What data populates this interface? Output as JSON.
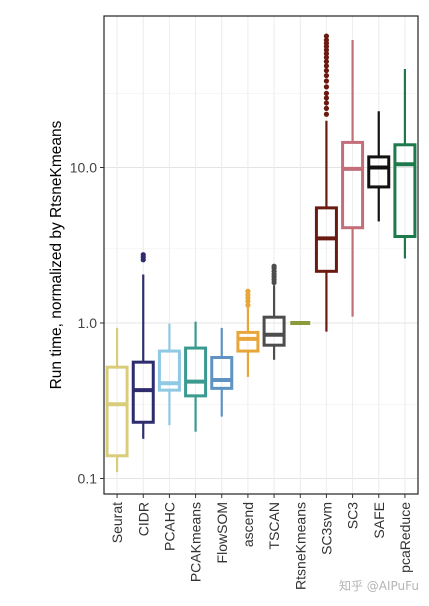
{
  "chart_data": {
    "type": "boxplot",
    "ylabel": "Run time, normalized by RtsneKmeans",
    "xlabel": "",
    "y_scale": "log10",
    "ylim": [
      0.08,
      100
    ],
    "y_ticks": [
      0.1,
      1.0,
      10.0
    ],
    "y_tick_labels": [
      "0.1",
      "1.0",
      "10.0"
    ],
    "grid": true,
    "legend": "none",
    "categories": [
      "Seurat",
      "CIDR",
      "PCAHC",
      "PCAKmeans",
      "FlowSOM",
      "ascend",
      "TSCAN",
      "RtsneKmeans",
      "SC3svm",
      "SC3",
      "SAFE",
      "pcaReduce"
    ],
    "colors": [
      "#D9CC7A",
      "#2E2C6E",
      "#8FC9E3",
      "#3A9A8F",
      "#5E93C2",
      "#E8A63A",
      "#4D4D4D",
      "#8C9A3C",
      "#6B1A12",
      "#C46E7A",
      "#111111",
      "#1E7A4A"
    ],
    "boxes": [
      {
        "name": "Seurat",
        "whisker_low": 0.11,
        "q1": 0.14,
        "median": 0.3,
        "q3": 0.52,
        "whisker_high": 0.93,
        "outliers": []
      },
      {
        "name": "CIDR",
        "whisker_low": 0.18,
        "q1": 0.23,
        "median": 0.37,
        "q3": 0.56,
        "whisker_high": 2.05,
        "outliers": [
          2.55,
          2.65,
          2.75
        ]
      },
      {
        "name": "PCAHC",
        "whisker_low": 0.22,
        "q1": 0.37,
        "median": 0.41,
        "q3": 0.66,
        "whisker_high": 0.99,
        "outliers": []
      },
      {
        "name": "PCAKmeans",
        "whisker_low": 0.2,
        "q1": 0.34,
        "median": 0.42,
        "q3": 0.69,
        "whisker_high": 1.02,
        "outliers": []
      },
      {
        "name": "FlowSOM",
        "whisker_low": 0.25,
        "q1": 0.38,
        "median": 0.43,
        "q3": 0.6,
        "whisker_high": 0.93,
        "outliers": []
      },
      {
        "name": "ascend",
        "whisker_low": 0.45,
        "q1": 0.66,
        "median": 0.79,
        "q3": 0.87,
        "whisker_high": 1.25,
        "outliers": [
          1.3,
          1.38,
          1.45,
          1.52,
          1.6
        ]
      },
      {
        "name": "TSCAN",
        "whisker_low": 0.58,
        "q1": 0.72,
        "median": 0.84,
        "q3": 1.09,
        "whisker_high": 1.75,
        "outliers": [
          1.82,
          1.9,
          1.98,
          2.06,
          2.15,
          2.25,
          2.32
        ]
      },
      {
        "name": "RtsneKmeans",
        "whisker_low": 1.0,
        "q1": 1.0,
        "median": 1.0,
        "q3": 1.0,
        "whisker_high": 1.0,
        "outliers": []
      },
      {
        "name": "SC3svm",
        "whisker_low": 0.88,
        "q1": 2.15,
        "median": 3.5,
        "q3": 5.5,
        "whisker_high": 20.0,
        "outliers": [
          22,
          24,
          26,
          28,
          30,
          33,
          36,
          39,
          42,
          45,
          48,
          51,
          54,
          57,
          60,
          63,
          66,
          70
        ]
      },
      {
        "name": "SC3",
        "whisker_low": 1.1,
        "q1": 4.1,
        "median": 9.8,
        "q3": 14.5,
        "whisker_high": 66.0,
        "outliers": []
      },
      {
        "name": "SAFE",
        "whisker_low": 4.5,
        "q1": 7.5,
        "median": 10.0,
        "q3": 11.7,
        "whisker_high": 23.0,
        "outliers": []
      },
      {
        "name": "pcaReduce",
        "whisker_low": 2.6,
        "q1": 3.6,
        "median": 10.5,
        "q3": 14.0,
        "whisker_high": 43.0,
        "outliers": []
      }
    ]
  },
  "watermark": "知乎 @AIPuFu"
}
